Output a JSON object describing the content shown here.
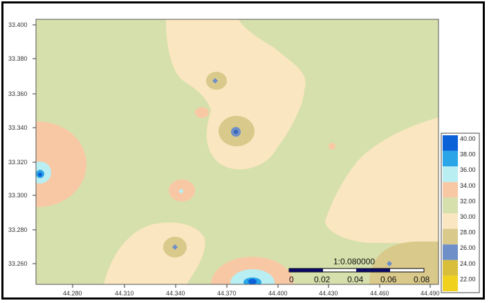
{
  "map": {
    "x_axis": {
      "ticks": [
        "44.280",
        "44.310",
        "44.340",
        "44.370",
        "44.400",
        "44.430",
        "44.460",
        "44.490"
      ]
    },
    "y_axis": {
      "ticks": [
        "33.400",
        "33.380",
        "33.360",
        "33.340",
        "33.320",
        "33.300",
        "33.280",
        "33.260"
      ]
    },
    "colors": {
      "band_28_30": "#d9c98a",
      "band_30_32": "#fae6c0",
      "band_32_34": "#d6e0ac",
      "band_34_36": "#f8c8a4",
      "band_36_38": "#b9eef2",
      "band_38_40": "#2aa6e8",
      "band_40_plus": "#0b61d8",
      "band_26": "#6f8fc8",
      "band_24": "#d8be3a",
      "band_22": "#f0d21e"
    }
  },
  "scale_bar": {
    "ratio": "1:0.080000",
    "labels": [
      "0",
      "0.02",
      "0.04",
      "0.06",
      "0.08"
    ]
  },
  "legend": {
    "entries": [
      {
        "label": "40.00",
        "color": "#0b61d8"
      },
      {
        "label": "38.00",
        "color": "#2aa6e8"
      },
      {
        "label": "36.00",
        "color": "#b9eef2"
      },
      {
        "label": "34.00",
        "color": "#f8c8a4"
      },
      {
        "label": "32.00",
        "color": "#d6e0ac"
      },
      {
        "label": "30.00",
        "color": "#fae6c0"
      },
      {
        "label": "28.00",
        "color": "#d9c98a"
      },
      {
        "label": "26.00",
        "color": "#6f8fc8"
      },
      {
        "label": "24.00",
        "color": "#d8be3a"
      },
      {
        "label": "22.00",
        "color": "#f0d21e"
      }
    ]
  }
}
